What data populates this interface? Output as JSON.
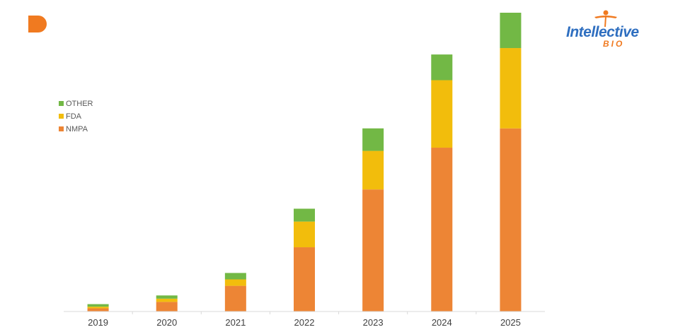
{
  "logo": {
    "text_main": "Intellective",
    "text_sub": "BIO",
    "colors": {
      "main": "#2f6fc0",
      "accent": "#f07a20"
    }
  },
  "corner_mark": {
    "icon": "brand-d-icon",
    "color": "#f07a20"
  },
  "chart_data": {
    "type": "bar",
    "stacked": true,
    "categories": [
      "2019",
      "2020",
      "2021",
      "2022",
      "2023",
      "2024",
      "2025"
    ],
    "series": [
      {
        "name": "NMPA",
        "color": "#ed8535",
        "values": [
          1,
          3,
          8,
          20,
          38,
          51,
          57
        ]
      },
      {
        "name": "FDA",
        "color": "#f2bd0c",
        "values": [
          0.5,
          1,
          2,
          8,
          12,
          21,
          25
        ]
      },
      {
        "name": "OTHER",
        "color": "#72b845",
        "values": [
          0.8,
          1,
          2,
          4,
          7,
          8,
          11
        ]
      }
    ],
    "ylim": [
      0,
      93
    ],
    "grid": false,
    "y_axis_visible": false,
    "legend": {
      "position": "left",
      "order": [
        "OTHER",
        "FDA",
        "NMPA"
      ]
    }
  }
}
